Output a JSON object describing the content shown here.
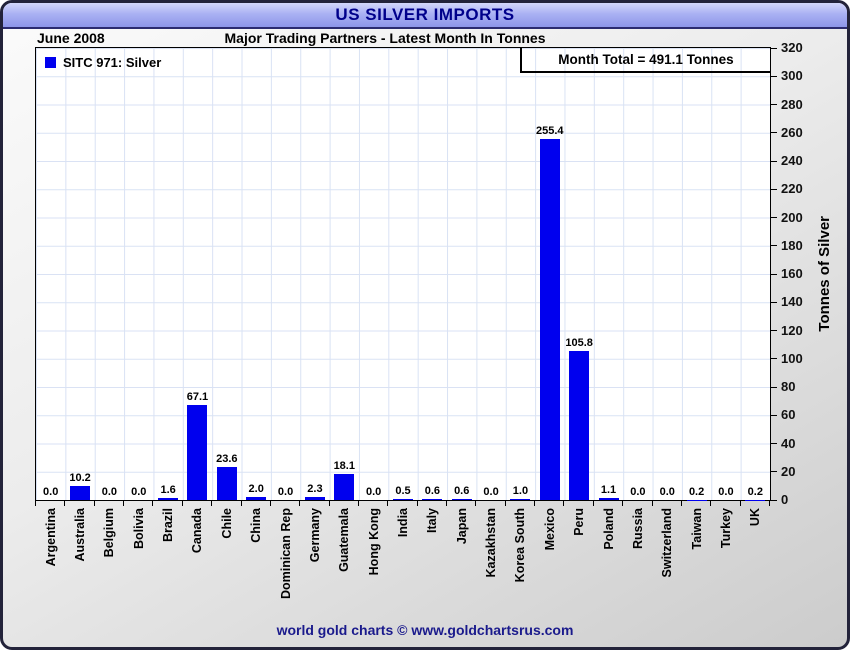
{
  "window": {
    "title": "US SILVER IMPORTS",
    "date_label": "June 2008",
    "subtitle": "Major Trading Partners - Latest Month In Tonnes",
    "footer": "world gold charts © www.goldchartsrus.com"
  },
  "legend": {
    "label": "SITC 971: Silver",
    "marker_color": "#0000ee"
  },
  "annotations": {
    "month_total": "Month Total = 491.1 Tonnes"
  },
  "colors": {
    "bar": "#0000ee",
    "grid": "#d9e2f4",
    "title_text": "#00008b",
    "footer_text": "#1a1a8c",
    "titlebar_gradient_top": "#d3d7fb",
    "titlebar_gradient_bottom": "#8d96e9"
  },
  "chart_data": {
    "type": "bar",
    "title": "US SILVER IMPORTS",
    "subtitle": "Major Trading Partners - Latest Month In Tonnes",
    "period": "June 2008",
    "month_total_tonnes": 491.1,
    "xlabel": "",
    "ylabel": "Tonnes of Silver",
    "ylim": [
      0,
      320
    ],
    "ytick_step": 20,
    "grid": true,
    "legend_position": "top-left",
    "categories": [
      "Argentina",
      "Australia",
      "Belgium",
      "Bolivia",
      "Brazil",
      "Canada",
      "Chile",
      "China",
      "Dominican Rep",
      "Germany",
      "Guatemala",
      "Hong Kong",
      "India",
      "Italy",
      "Japan",
      "Kazakhstan",
      "Korea South",
      "Mexico",
      "Peru",
      "Poland",
      "Russia",
      "Switzerland",
      "Taiwan",
      "Turkey",
      "UK"
    ],
    "values": [
      0.0,
      10.2,
      0.0,
      0.0,
      1.6,
      67.1,
      23.6,
      2.0,
      0.0,
      2.3,
      18.1,
      0.0,
      0.5,
      0.6,
      0.6,
      0.0,
      1.0,
      255.4,
      105.8,
      1.1,
      0.0,
      0.0,
      0.2,
      0.0,
      0.2
    ],
    "value_labels": [
      "0.0",
      "10.2",
      "0.0",
      "0.0",
      "1.6",
      "67.1",
      "23.6",
      "2.0",
      "0.0",
      "2.3",
      "18.1",
      "0.0",
      "0.5",
      "0.6",
      "0.6",
      "0.0",
      "1.0",
      "255.4",
      "105.8",
      "1.1",
      "0.0",
      "0.0",
      "0.2",
      "0.0",
      "0.2"
    ]
  }
}
